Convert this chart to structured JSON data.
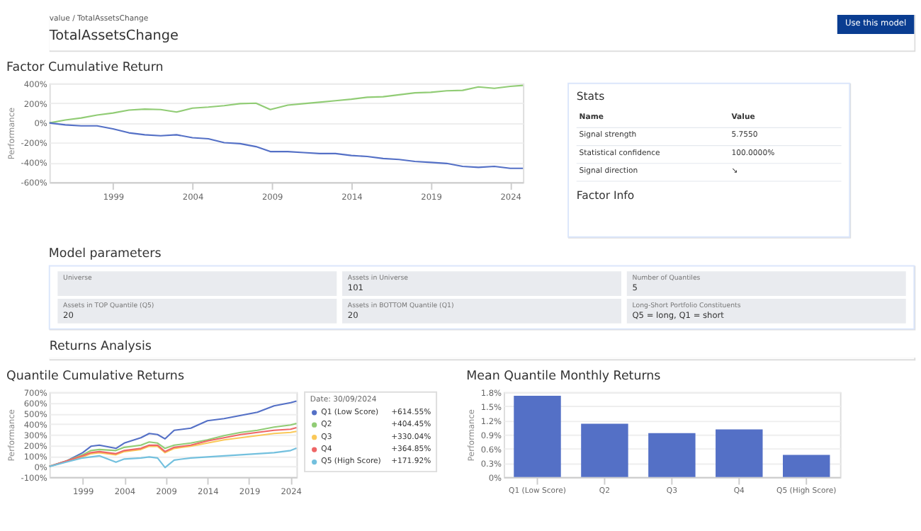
{
  "chart_data": [
    {
      "type": "other",
      "title": "TotalAssetsChange",
      "annotations": [
        "value / TotalAssetsChange",
        "Use this model"
      ]
    },
    {
      "type": "line",
      "title": "Factor Cumulative Return",
      "ylabel": "Performance",
      "x": [
        1995,
        1996,
        1997,
        1998,
        1999,
        2000,
        2001,
        2002,
        2003,
        2004,
        2005,
        2006,
        2007,
        2008,
        2008.9,
        2010,
        2011,
        2012,
        2013,
        2014,
        2015,
        2016,
        2017,
        2018,
        2019,
        2020,
        2021,
        2022,
        2023,
        2024,
        2024.8
      ],
      "series": [
        {
          "color": "#91cc75",
          "values": [
            0,
            30,
            50,
            80,
            100,
            130,
            140,
            135,
            110,
            150,
            160,
            175,
            195,
            200,
            135,
            180,
            195,
            210,
            225,
            240,
            260,
            265,
            285,
            305,
            310,
            325,
            330,
            365,
            350,
            370,
            380
          ]
        },
        {
          "color": "#5470c6",
          "values": [
            0,
            -20,
            -30,
            -30,
            -60,
            -100,
            -120,
            -130,
            -120,
            -150,
            -160,
            -200,
            -210,
            -240,
            -290,
            -290,
            -300,
            -310,
            -310,
            -330,
            -340,
            -360,
            -370,
            -390,
            -400,
            -410,
            -440,
            -450,
            -440,
            -460,
            -460
          ]
        }
      ],
      "xlim": [
        1995,
        2024.8
      ],
      "xticks": [
        1999,
        2004,
        2009,
        2014,
        2019,
        2024
      ],
      "ylim": [
        -600,
        400
      ],
      "yticks": [
        {
          "value": -600,
          "label": "-600%"
        },
        {
          "value": -400,
          "label": "-400%"
        },
        {
          "value": -200,
          "label": "-200%"
        },
        {
          "value": 0,
          "label": "0%"
        },
        {
          "value": 200,
          "label": "200%"
        },
        {
          "value": 400,
          "label": "400%"
        }
      ],
      "grid": "y"
    },
    {
      "type": "other",
      "title": "Stats",
      "annotations": [
        "Name",
        "Value",
        "Signal strength",
        "5.7550",
        "Statistical confidence",
        "100.0000%",
        "Signal direction",
        "↘",
        "Factor Info"
      ]
    },
    {
      "type": "other",
      "title": "Model parameters",
      "annotations": [
        "Universe",
        "Assets in Universe\n101",
        "Number of Quantiles\n5",
        "Assets in TOP Quantile (Q5)\n20",
        "Assets in BOTTOM Quantile (Q1)\n20",
        "Long-Short Portfolio Constituents\nQ5 = long, Q1 = short"
      ]
    },
    {
      "type": "other",
      "title": "Returns Analysis"
    },
    {
      "type": "line",
      "title": "Quantile Cumulative Returns",
      "ylabel": "Performance",
      "legend": "right",
      "legend_title": "Date: 30/09/2024",
      "annotations": [
        "+614.55%",
        "+404.45%",
        "+330.04%",
        "+364.85%",
        "+171.92%"
      ],
      "x": [
        1995,
        1997,
        1999,
        2000,
        2001,
        2003,
        2004,
        2006,
        2007,
        2008,
        2008.9,
        2010,
        2012,
        2014,
        2016,
        2018,
        2020,
        2022,
        2024,
        2024.7
      ],
      "series": [
        {
          "name": "Q1 (Low Score)",
          "color": "#5470c6",
          "values": [
            0,
            50,
            130,
            190,
            200,
            170,
            220,
            270,
            310,
            300,
            260,
            340,
            360,
            430,
            450,
            480,
            510,
            570,
            600,
            614.55
          ]
        },
        {
          "name": "Q2",
          "color": "#91cc75",
          "values": [
            0,
            50,
            110,
            150,
            160,
            150,
            180,
            200,
            230,
            220,
            170,
            200,
            220,
            250,
            290,
            320,
            340,
            370,
            390,
            404.45
          ]
        },
        {
          "name": "Q3",
          "color": "#fac858",
          "values": [
            0,
            45,
            90,
            120,
            130,
            110,
            140,
            160,
            190,
            190,
            130,
            170,
            190,
            220,
            250,
            270,
            290,
            310,
            320,
            330.04
          ]
        },
        {
          "name": "Q4",
          "color": "#ee6666",
          "values": [
            0,
            50,
            100,
            130,
            140,
            120,
            150,
            170,
            200,
            200,
            140,
            180,
            200,
            240,
            270,
            300,
            320,
            340,
            350,
            364.85
          ]
        },
        {
          "name": "Q5 (High Score)",
          "color": "#73c0de",
          "values": [
            0,
            40,
            80,
            90,
            100,
            40,
            70,
            80,
            90,
            80,
            -10,
            60,
            80,
            90,
            100,
            110,
            120,
            130,
            150,
            171.92
          ]
        }
      ],
      "xlim": [
        1995,
        2024.7
      ],
      "xticks": [
        1999,
        2004,
        2009,
        2014,
        2019,
        2024
      ],
      "ylim": [
        -100,
        700
      ],
      "yticks": [
        {
          "value": -100,
          "label": "-100%"
        },
        {
          "value": 0,
          "label": "0%"
        },
        {
          "value": 100,
          "label": "100%"
        },
        {
          "value": 200,
          "label": "200%"
        },
        {
          "value": 300,
          "label": "300%"
        },
        {
          "value": 400,
          "label": "400%"
        },
        {
          "value": 500,
          "label": "500%"
        },
        {
          "value": 600,
          "label": "600%"
        },
        {
          "value": 700,
          "label": "700%"
        }
      ],
      "grid": "y"
    },
    {
      "type": "bar",
      "title": "Mean Quantile Monthly Returns",
      "ylabel": "Performance",
      "categories": [
        "Q1 (Low Score)",
        "Q2",
        "Q3",
        "Q4",
        "Q5 (High Score)"
      ],
      "values": [
        1.72,
        1.13,
        0.93,
        1.01,
        0.47
      ],
      "color": "#5470c6",
      "ylim": [
        0,
        1.8
      ],
      "yticks": [
        {
          "value": 0,
          "label": "0%"
        },
        {
          "value": 0.3,
          "label": "0.3%"
        },
        {
          "value": 0.6,
          "label": "0.6%"
        },
        {
          "value": 0.9,
          "label": "0.9%"
        },
        {
          "value": 1.2,
          "label": "1.2%"
        },
        {
          "value": 1.5,
          "label": "1.5%"
        },
        {
          "value": 1.8,
          "label": "1.8%"
        }
      ],
      "grid": "y"
    }
  ]
}
